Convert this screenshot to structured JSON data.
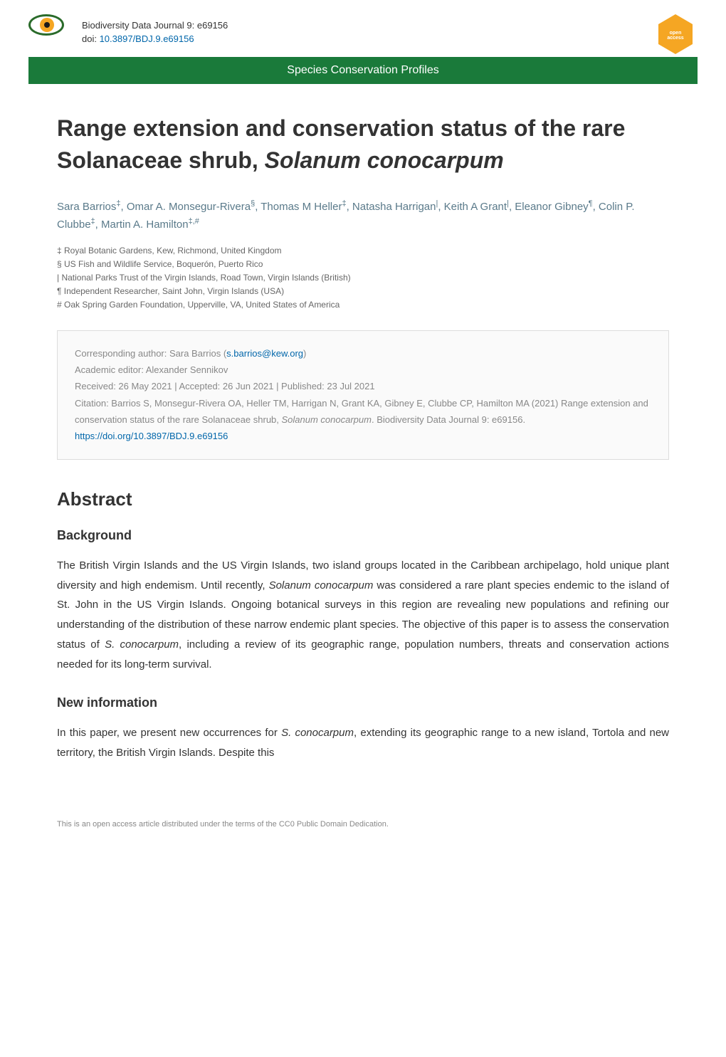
{
  "header": {
    "journal_line": "Biodiversity Data Journal 9: e69156",
    "doi_label": "doi: ",
    "doi_link": "10.3897/BDJ.9.e69156",
    "open_access_label": "open access"
  },
  "banner": {
    "text": "Species Conservation Profiles"
  },
  "article": {
    "title_prefix": "Range extension and conservation status of the rare Solanaceae shrub, ",
    "title_species": "Solanum conocarpum",
    "authors_html": "Sara Barrios‡, Omar A. Monsegur-Rivera§, Thomas M Heller‡, Natasha Harrigan|, Keith A Grant|, Eleanor Gibney¶, Colin P. Clubbe‡, Martin A. Hamilton‡,#",
    "affiliations": [
      "‡ Royal Botanic Gardens, Kew, Richmond, United Kingdom",
      "§ US Fish and Wildlife Service, Boquerón, Puerto Rico",
      "| National Parks Trust of the Virgin Islands, Road Town, Virgin Islands (British)",
      "¶ Independent Researcher, Saint John, Virgin Islands (USA)",
      "# Oak Spring Garden Foundation, Upperville, VA, United States of America"
    ]
  },
  "infobox": {
    "corresponding_label": "Corresponding author: Sara Barrios (",
    "corresponding_email": "s.barrios@kew.org",
    "corresponding_close": ")",
    "editor_line": "Academic editor: Alexander Sennikov",
    "dates_line": "Received: 26 May 2021 | Accepted: 26 Jun 2021 | Published: 23 Jul 2021",
    "citation_prefix": "Citation: Barrios S, Monsegur-Rivera OA, Heller TM, Harrigan N, Grant KA, Gibney E, Clubbe CP, Hamilton MA (2021) Range extension and conservation status of the rare Solanaceae shrub, ",
    "citation_species": "Solanum conocarpum",
    "citation_suffix": ". Biodiversity Data Journal 9: e69156. ",
    "citation_doi": "https://doi.org/10.3897/BDJ.9.e69156"
  },
  "sections": {
    "abstract_heading": "Abstract",
    "background_heading": "Background",
    "background_text_1": "The British Virgin Islands and the US Virgin Islands, two island groups located in the Caribbean archipelago, hold unique plant diversity and high endemism. Until recently, ",
    "background_species_1": "Solanum conocarpum",
    "background_text_2": " was considered a rare plant species endemic to the island of St. John in the US Virgin Islands. Ongoing botanical surveys in this region are revealing new populations and refining our understanding of the distribution of these narrow endemic plant species. The objective of this paper is to assess the conservation status of ",
    "background_species_2": "S. conocarpum",
    "background_text_3": ", including a review of its geographic range, population numbers, threats and conservation actions needed for its long-term survival.",
    "newinfo_heading": "New information",
    "newinfo_text_1": "In this paper, we present new occurrences for ",
    "newinfo_species_1": "S. conocarpum",
    "newinfo_text_2": ", extending its geographic range to a new island, Tortola and new territory, the British Virgin Islands. Despite this"
  },
  "footer": {
    "license_text": "This is an open access article distributed under the terms of the CC0 Public Domain Dedication."
  },
  "colors": {
    "banner_bg": "#1a7a3a",
    "banner_text": "#ffffff",
    "link_color": "#0066aa",
    "author_color": "#5a7a8a",
    "body_text": "#333333",
    "muted_text": "#888888",
    "infobox_bg": "#fafafa",
    "infobox_border": "#dddddd"
  },
  "typography": {
    "title_size": 32,
    "section_heading_size": 26,
    "subsection_heading_size": 18,
    "body_size": 15,
    "author_size": 15,
    "affiliation_size": 12,
    "infobox_size": 13,
    "footer_size": 11
  }
}
